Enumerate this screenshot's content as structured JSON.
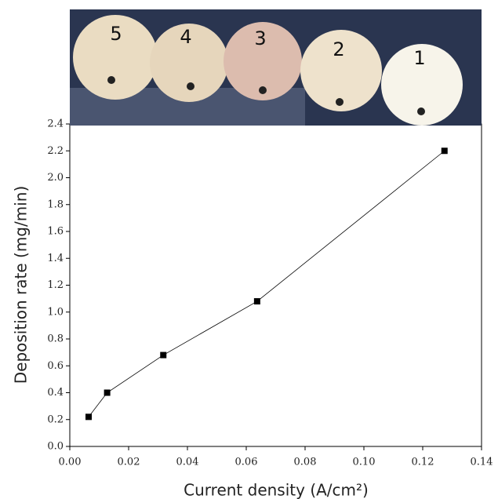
{
  "chart_data": {
    "type": "line",
    "x_label": "Current density (A/cm²)",
    "y_label": "Deposition rate (mg/min)",
    "photo_labels": [
      "5",
      "4",
      "3",
      "2",
      "1"
    ],
    "x": [
      0.0064,
      0.0127,
      0.0318,
      0.0637,
      0.1274
    ],
    "series": [
      {
        "values": [
          0.22,
          0.4,
          0.68,
          1.08,
          2.2
        ],
        "color": "#000000"
      }
    ],
    "xlim": [
      0,
      0.14
    ],
    "xticks": [
      {
        "value": 0,
        "label": "0.00"
      },
      {
        "value": 0.02,
        "label": "0.02"
      },
      {
        "value": 0.04,
        "label": "0.04"
      },
      {
        "value": 0.06,
        "label": "0.06"
      },
      {
        "value": 0.08,
        "label": "0.08"
      },
      {
        "value": 0.1,
        "label": "0.10"
      },
      {
        "value": 0.12,
        "label": "0.12"
      },
      {
        "value": 0.14,
        "label": "0.14"
      }
    ],
    "ylim": [
      0,
      2.4
    ],
    "yticks": [
      {
        "value": 0,
        "label": "0.0"
      },
      0.2,
      0.4,
      0.6,
      0.8,
      {
        "value": 1,
        "label": "1.0"
      },
      1.2,
      1.4,
      1.6,
      1.8,
      {
        "value": 2,
        "label": "2.0"
      },
      2.2,
      2.4
    ]
  }
}
